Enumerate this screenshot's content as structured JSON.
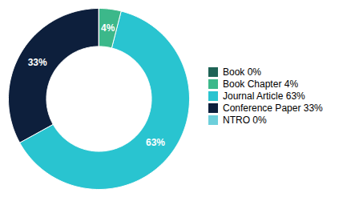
{
  "chart_data": {
    "type": "pie",
    "categories": [
      "Book 0%",
      "Book Chapter 4%",
      "Journal Article 63%",
      "Conference Paper 33%",
      "NTRO 0%"
    ],
    "values": [
      0.001,
      4,
      63,
      33,
      0.001
    ],
    "colors": [
      "#1e6356",
      "#3cb88a",
      "#29c4d0",
      "#0d1f3c",
      "#6dcfdb"
    ],
    "data_labels": true,
    "value_labels": [
      null,
      "4%",
      "63%",
      "33%",
      null
    ],
    "legend": "right",
    "tick_labels": false
  }
}
